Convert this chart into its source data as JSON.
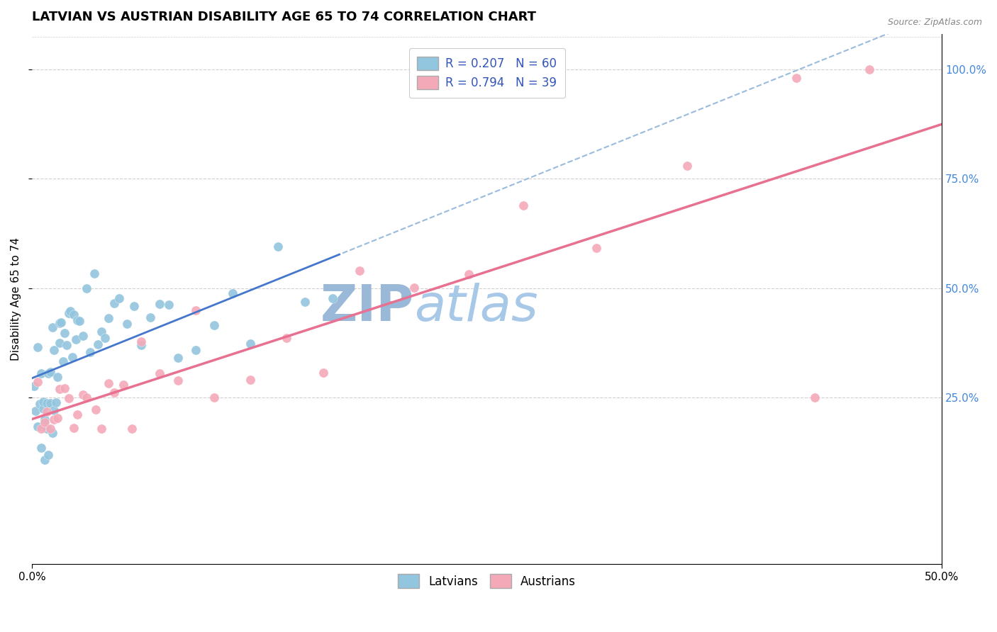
{
  "title": "LATVIAN VS AUSTRIAN DISABILITY AGE 65 TO 74 CORRELATION CHART",
  "source_text": "Source: ZipAtlas.com",
  "ylabel": "Disability Age 65 to 74",
  "y_tick_labels": [
    "25.0%",
    "50.0%",
    "75.0%",
    "100.0%"
  ],
  "y_tick_values": [
    0.25,
    0.5,
    0.75,
    1.0
  ],
  "x_range": [
    0.0,
    0.5
  ],
  "y_range": [
    -0.13,
    1.08
  ],
  "latvian_R": 0.207,
  "latvian_N": 60,
  "austrian_R": 0.794,
  "austrian_N": 39,
  "latvian_color": "#92C5DE",
  "austrian_color": "#F4A9B8",
  "latvian_trend_color": "#4477CC",
  "austrian_trend_color": "#E87090",
  "latvian_dash_color": "#99BBDD",
  "watermark_zip_color": "#9ab8d8",
  "watermark_atlas_color": "#a8c8e8",
  "legend_text_color": "#3355bb",
  "grid_color": "#d0d0d0",
  "background_color": "#ffffff",
  "title_fontsize": 13,
  "axis_label_fontsize": 11,
  "tick_label_fontsize": 11,
  "legend_fontsize": 12
}
